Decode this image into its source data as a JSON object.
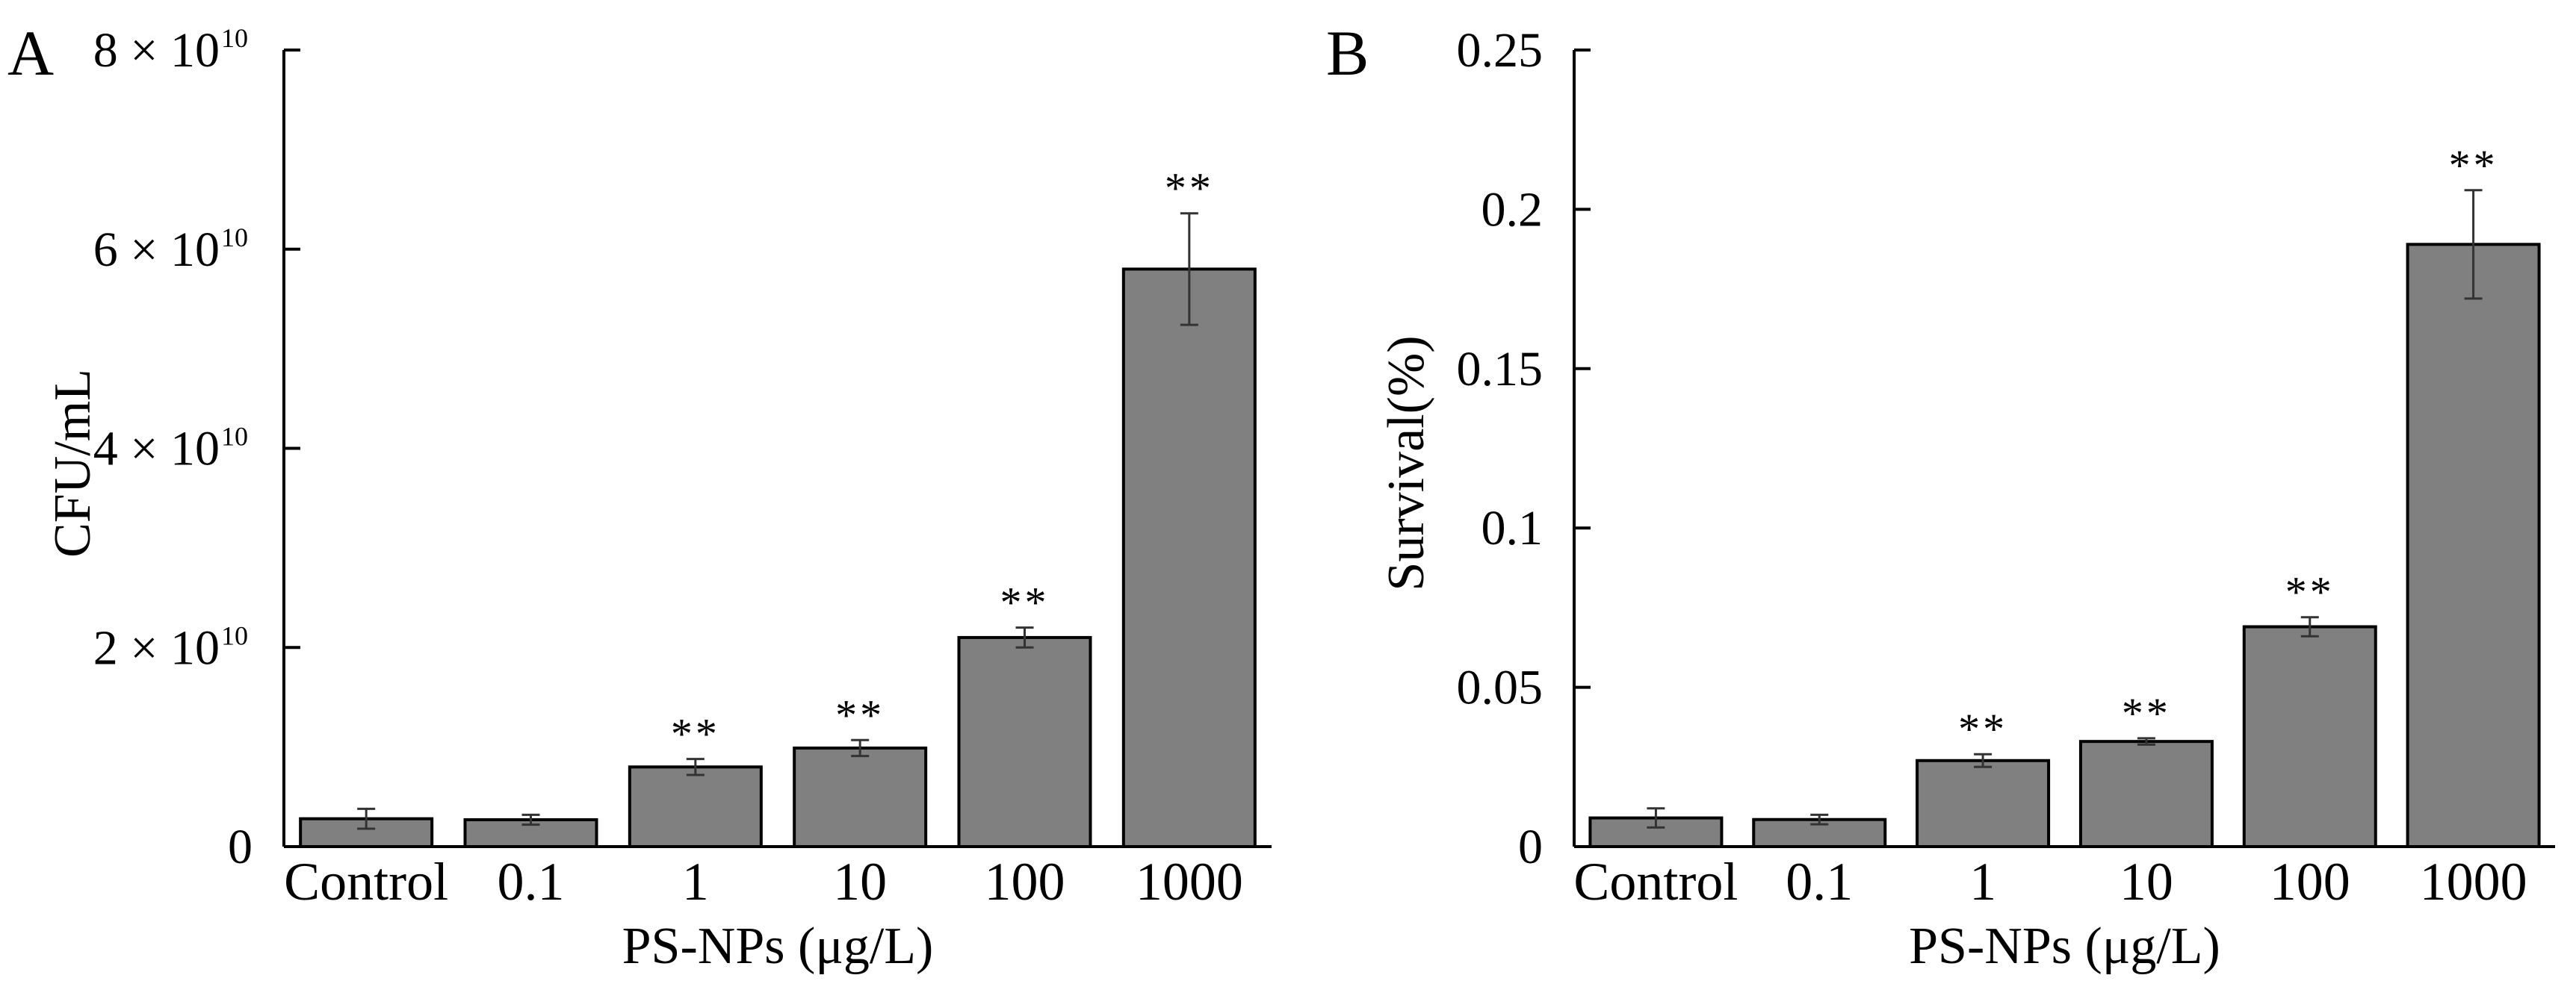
{
  "figure": {
    "panels": [
      "A",
      "B"
    ]
  },
  "colors": {
    "bar_fill": "#808080",
    "bar_stroke": "#000000",
    "error_bar": "#333333",
    "text": "#000000"
  },
  "chart_data": [
    {
      "type": "bar",
      "panel": "A",
      "title": "",
      "xlabel": "PS-NPs  (μg/L)",
      "ylabel": "CFU/mL",
      "categories": [
        "Control",
        "0.1",
        "1",
        "10",
        "100",
        "1000"
      ],
      "values": [
        2800000000.0,
        2700000000.0,
        8000000000.0,
        9900000000.0,
        21000000000.0,
        58000000000.0
      ],
      "errors": [
        1000000000.0,
        500000000.0,
        800000000.0,
        800000000.0,
        1000000000.0,
        5600000000.0
      ],
      "significance": [
        "",
        "",
        "**",
        "**",
        "**",
        "**"
      ],
      "ylim": [
        0,
        80000000000.0
      ],
      "yticks": [
        {
          "value": 0,
          "mantissa": "0",
          "exponent": ""
        },
        {
          "value": 20000000000.0,
          "mantissa": "2 × 10",
          "exponent": "10"
        },
        {
          "value": 40000000000.0,
          "mantissa": "4 × 10",
          "exponent": "10"
        },
        {
          "value": 60000000000.0,
          "mantissa": "6 × 10",
          "exponent": "10"
        },
        {
          "value": 80000000000.0,
          "mantissa": "8 × 10",
          "exponent": "10"
        }
      ],
      "grid": false
    },
    {
      "type": "bar",
      "panel": "B",
      "title": "",
      "xlabel": "PS-NPs  (μg/L)",
      "ylabel": "Survival(%)",
      "categories": [
        "Control",
        "0.1",
        "1",
        "10",
        "100",
        "1000"
      ],
      "values": [
        0.009,
        0.0085,
        0.027,
        0.033,
        0.069,
        0.189
      ],
      "errors": [
        0.003,
        0.0015,
        0.002,
        0.001,
        0.003,
        0.017
      ],
      "significance": [
        "",
        "",
        "**",
        "**",
        "**",
        "**"
      ],
      "ylim": [
        0,
        0.25
      ],
      "yticks": [
        {
          "value": 0,
          "mantissa": "0",
          "exponent": ""
        },
        {
          "value": 0.05,
          "mantissa": "0.05",
          "exponent": ""
        },
        {
          "value": 0.1,
          "mantissa": "0.1",
          "exponent": ""
        },
        {
          "value": 0.15,
          "mantissa": "0.15",
          "exponent": ""
        },
        {
          "value": 0.2,
          "mantissa": "0.2",
          "exponent": ""
        },
        {
          "value": 0.25,
          "mantissa": "0.25",
          "exponent": ""
        }
      ],
      "grid": false
    }
  ]
}
